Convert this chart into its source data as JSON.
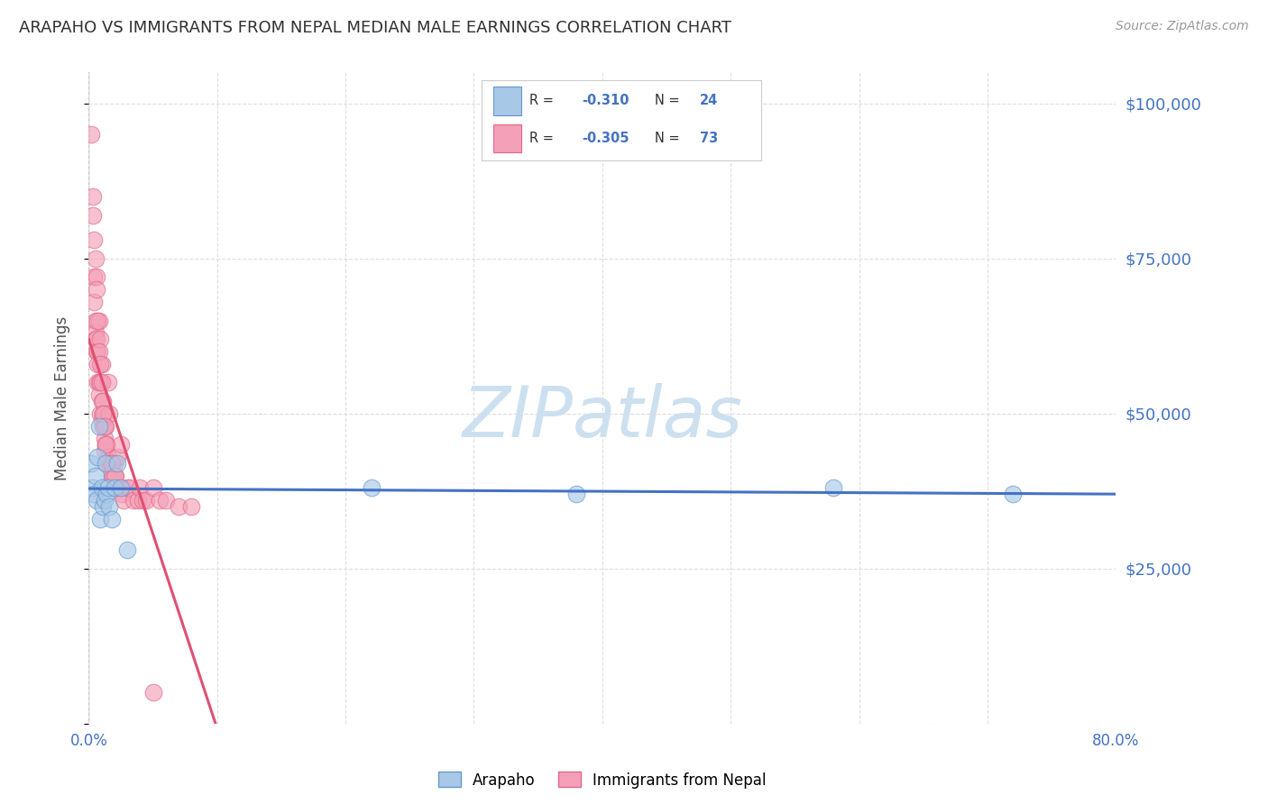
{
  "title": "ARAPAHO VS IMMIGRANTS FROM NEPAL MEDIAN MALE EARNINGS CORRELATION CHART",
  "source": "Source: ZipAtlas.com",
  "ylabel": "Median Male Earnings",
  "xlim": [
    0.0,
    0.8
  ],
  "ylim": [
    0,
    105000
  ],
  "xticks": [
    0.0,
    0.1,
    0.2,
    0.3,
    0.4,
    0.5,
    0.6,
    0.7,
    0.8
  ],
  "ytick_positions": [
    0,
    25000,
    50000,
    75000,
    100000
  ],
  "ytick_labels": [
    "",
    "$25,000",
    "$50,000",
    "$75,000",
    "$100,000"
  ],
  "series_arapaho": {
    "color": "#a8c8e8",
    "edge_color": "#6699cc",
    "x": [
      0.002,
      0.003,
      0.004,
      0.005,
      0.006,
      0.007,
      0.008,
      0.009,
      0.01,
      0.011,
      0.012,
      0.013,
      0.014,
      0.015,
      0.016,
      0.018,
      0.02,
      0.022,
      0.025,
      0.03,
      0.22,
      0.38,
      0.58,
      0.72
    ],
    "y": [
      42000,
      38000,
      37000,
      40000,
      36000,
      43000,
      48000,
      33000,
      38000,
      35000,
      36000,
      42000,
      37000,
      38000,
      35000,
      33000,
      38000,
      42000,
      38000,
      28000,
      38000,
      37000,
      38000,
      37000
    ]
  },
  "series_nepal": {
    "color": "#f4a0b8",
    "edge_color": "#e06888",
    "x": [
      0.002,
      0.003,
      0.003,
      0.004,
      0.004,
      0.005,
      0.005,
      0.005,
      0.006,
      0.006,
      0.006,
      0.007,
      0.007,
      0.007,
      0.008,
      0.008,
      0.008,
      0.009,
      0.009,
      0.009,
      0.01,
      0.01,
      0.01,
      0.011,
      0.011,
      0.011,
      0.012,
      0.012,
      0.012,
      0.013,
      0.013,
      0.014,
      0.014,
      0.015,
      0.015,
      0.016,
      0.016,
      0.017,
      0.018,
      0.019,
      0.02,
      0.021,
      0.022,
      0.023,
      0.024,
      0.025,
      0.026,
      0.027,
      0.03,
      0.032,
      0.035,
      0.038,
      0.04,
      0.042,
      0.045,
      0.05,
      0.055,
      0.06,
      0.07,
      0.08,
      0.01,
      0.011,
      0.012,
      0.013,
      0.018,
      0.02,
      0.008,
      0.009,
      0.007,
      0.006,
      0.005,
      0.004,
      0.05
    ],
    "y": [
      95000,
      85000,
      82000,
      72000,
      68000,
      65000,
      63000,
      62000,
      72000,
      62000,
      60000,
      60000,
      58000,
      55000,
      65000,
      55000,
      53000,
      62000,
      55000,
      50000,
      58000,
      52000,
      49000,
      52000,
      50000,
      48000,
      50000,
      46000,
      44000,
      48000,
      45000,
      45000,
      42000,
      55000,
      43000,
      50000,
      42000,
      42000,
      40000,
      40000,
      42000,
      40000,
      43000,
      38000,
      38000,
      45000,
      37000,
      36000,
      38000,
      38000,
      36000,
      36000,
      38000,
      36000,
      36000,
      38000,
      36000,
      36000,
      35000,
      35000,
      55000,
      50000,
      48000,
      45000,
      42000,
      40000,
      60000,
      58000,
      65000,
      70000,
      75000,
      78000,
      5000
    ]
  },
  "arapaho_trend_color": "#4472c4",
  "nepal_trend_color": "#e05070",
  "nepal_trend_dashed_color": "#f0a0b0",
  "watermark": "ZIPatlas",
  "watermark_color": "#cce0f0",
  "background_color": "#ffffff",
  "grid_color": "#dddddd",
  "title_color": "#303030",
  "axis_color": "#4472c4",
  "legend_R_arapaho": "-0.310",
  "legend_N_arapaho": "24",
  "legend_R_nepal": "-0.305",
  "legend_N_nepal": "73",
  "legend_color_arapaho": "#a8c8e8",
  "legend_color_nepal": "#f4a0b8",
  "legend_bottom": [
    "Arapaho",
    "Immigrants from Nepal"
  ],
  "legend_bottom_colors": [
    "#a8c8e8",
    "#f4a0b8"
  ],
  "legend_bottom_edge_colors": [
    "#6699cc",
    "#e06888"
  ]
}
